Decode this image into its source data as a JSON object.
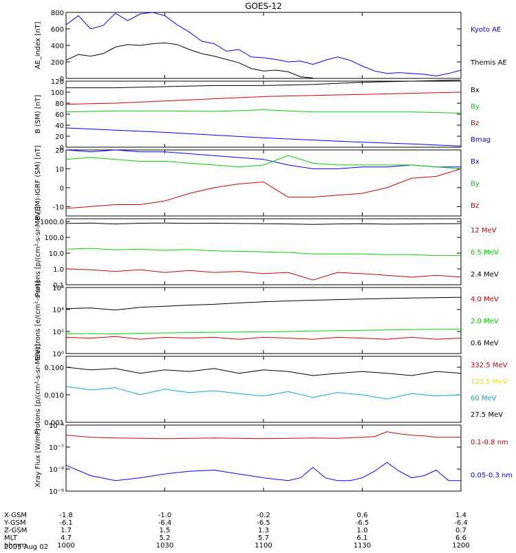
{
  "title": "GOES-12",
  "colors": {
    "black": "#000000",
    "blue": "#0000ff",
    "green": "#00d000",
    "red": "#cc0000",
    "yellow": "#ffd700",
    "cyan": "#00a8d8"
  },
  "chart_data": [
    {
      "type": "line",
      "ylabel": "AE_index [nT]",
      "ylim": [
        0,
        800
      ],
      "yscale": "linear",
      "yticks": [
        0,
        200,
        400,
        600,
        800
      ],
      "yticklabels": [
        "0",
        "200",
        "400",
        "600",
        "800"
      ],
      "series": [
        {
          "name": "Kyoto AE",
          "color": "blue",
          "x": [
            -1.8,
            -1.7,
            -1.6,
            -1.5,
            -1.4,
            -1.3,
            -1.2,
            -1.1,
            -1.0,
            -0.9,
            -0.8,
            -0.7,
            -0.6,
            -0.5,
            -0.4,
            -0.3,
            -0.2,
            -0.1,
            0.0,
            0.1,
            0.2,
            0.3,
            0.4,
            0.5,
            0.6,
            0.7,
            0.8,
            0.9,
            1.0,
            1.1,
            1.2,
            1.3,
            1.4
          ],
          "y": [
            650,
            760,
            600,
            640,
            790,
            700,
            780,
            800,
            760,
            650,
            560,
            450,
            420,
            330,
            350,
            260,
            250,
            230,
            200,
            210,
            170,
            220,
            260,
            220,
            150,
            90,
            60,
            70,
            60,
            50,
            30,
            60,
            100
          ]
        },
        {
          "name": "Themis AE",
          "color": "black",
          "x": [
            -1.8,
            -1.7,
            -1.6,
            -1.5,
            -1.4,
            -1.3,
            -1.2,
            -1.1,
            -1.0,
            -0.9,
            -0.8,
            -0.7,
            -0.6,
            -0.5,
            -0.4,
            -0.3,
            -0.2,
            -0.1,
            0.0,
            0.1,
            0.2
          ],
          "y": [
            220,
            290,
            270,
            300,
            380,
            410,
            400,
            420,
            430,
            410,
            350,
            300,
            270,
            230,
            190,
            120,
            90,
            100,
            80,
            20,
            5
          ]
        }
      ]
    },
    {
      "type": "line",
      "ylabel": "B (SM) [nT]",
      "ylim": [
        0,
        120
      ],
      "yscale": "linear",
      "yticks": [
        0,
        20,
        40,
        60,
        80,
        100,
        120
      ],
      "yticklabels": [
        "0",
        "20",
        "40",
        "60",
        "80",
        "100",
        "120"
      ],
      "series": [
        {
          "name": "Bx",
          "color": "black",
          "x": [
            -1.8,
            -1.4,
            -1.0,
            -0.6,
            -0.2,
            0.2,
            0.6,
            1.0,
            1.4
          ],
          "y": [
            108,
            108,
            110,
            112,
            112,
            114,
            118,
            120,
            122
          ]
        },
        {
          "name": "By",
          "color": "green",
          "x": [
            -1.8,
            -1.4,
            -1.0,
            -0.6,
            -0.2,
            0.2,
            0.6,
            1.0,
            1.4
          ],
          "y": [
            64,
            66,
            66,
            65,
            68,
            64,
            64,
            64,
            62
          ]
        },
        {
          "name": "Bz",
          "color": "red",
          "x": [
            -1.8,
            -1.4,
            -1.0,
            -0.6,
            -0.2,
            0.2,
            0.6,
            1.0,
            1.4
          ],
          "y": [
            78,
            80,
            84,
            88,
            92,
            94,
            96,
            98,
            100
          ]
        },
        {
          "name": "Bmag",
          "color": "blue",
          "x": [
            -1.8,
            -1.4,
            -1.0,
            -0.6,
            -0.2,
            0.2,
            0.6,
            1.0,
            1.4
          ],
          "y": [
            35,
            31,
            27,
            22,
            17,
            13,
            9,
            6,
            2
          ]
        }
      ]
    },
    {
      "type": "line",
      "ylabel": "B (SM)-IGRF (SM) [nT]",
      "ylim": [
        -15,
        20
      ],
      "yscale": "linear",
      "yticks": [
        -10,
        0,
        10,
        20
      ],
      "yticklabels": [
        "-10",
        "0",
        "10",
        "20"
      ],
      "series": [
        {
          "name": "Bx",
          "color": "blue",
          "x": [
            -1.8,
            -1.6,
            -1.4,
            -1.2,
            -1.0,
            -0.8,
            -0.6,
            -0.4,
            -0.2,
            0.0,
            0.2,
            0.4,
            0.6,
            0.8,
            1.0,
            1.2,
            1.4
          ],
          "y": [
            20,
            19,
            20,
            19,
            19,
            18,
            17,
            16,
            15,
            12,
            10,
            10,
            11,
            11,
            12,
            11,
            11
          ]
        },
        {
          "name": "By",
          "color": "green",
          "x": [
            -1.8,
            -1.6,
            -1.4,
            -1.2,
            -1.0,
            -0.8,
            -0.6,
            -0.4,
            -0.2,
            0.0,
            0.2,
            0.4,
            0.6,
            0.8,
            1.0,
            1.2,
            1.4
          ],
          "y": [
            15,
            16,
            15,
            14,
            14,
            13,
            12,
            11,
            12,
            17,
            13,
            12,
            12,
            12,
            12,
            11,
            10
          ]
        },
        {
          "name": "Bz",
          "color": "red",
          "x": [
            -1.8,
            -1.6,
            -1.4,
            -1.2,
            -1.0,
            -0.8,
            -0.6,
            -0.4,
            -0.2,
            0.0,
            0.2,
            0.4,
            0.6,
            0.8,
            1.0,
            1.2,
            1.4
          ],
          "y": [
            -11,
            -10,
            -9,
            -9,
            -7,
            -3,
            0,
            2,
            3,
            -5,
            -5,
            -4,
            -3,
            0,
            5,
            6,
            10
          ]
        }
      ]
    },
    {
      "type": "line",
      "ylabel": "Protons [p/(cm²-s-sr-MeV)]",
      "ylim": [
        0.1,
        1500
      ],
      "yscale": "log",
      "yticks": [
        0.1,
        1,
        10,
        100,
        1000
      ],
      "yticklabels": [
        "0.1",
        "1.0",
        "10.0",
        "100.0",
        "1000.0"
      ],
      "series": [
        {
          "name": "12 MeV",
          "color": "red",
          "x": [
            -1.8,
            -1.6,
            -1.4,
            -1.2,
            -1.0,
            -0.8,
            -0.6,
            -0.4,
            -0.2,
            0.0,
            0.2,
            0.4,
            0.6,
            0.8,
            1.0,
            1.2,
            1.4
          ],
          "y": [
            1.0,
            0.9,
            0.7,
            0.9,
            0.6,
            0.8,
            0.6,
            0.7,
            0.5,
            0.6,
            0.2,
            0.6,
            0.5,
            0.4,
            0.3,
            0.4,
            0.3
          ]
        },
        {
          "name": "6.5 MeV",
          "color": "green",
          "x": [
            -1.8,
            -1.6,
            -1.4,
            -1.2,
            -1.0,
            -0.8,
            -0.6,
            -0.4,
            -0.2,
            0.0,
            0.2,
            0.4,
            0.6,
            0.8,
            1.0,
            1.2,
            1.4
          ],
          "y": [
            18,
            20,
            16,
            18,
            15,
            17,
            14,
            13,
            12,
            11,
            9,
            9,
            9,
            8,
            8,
            7,
            7
          ]
        },
        {
          "name": "2.4 MeV",
          "color": "black",
          "x": [
            -1.8,
            -1.6,
            -1.4,
            -1.2,
            -1.0,
            -0.8,
            -0.6,
            -0.4,
            -0.2,
            0.0,
            0.2,
            0.4,
            0.6,
            0.8,
            1.0,
            1.2,
            1.4
          ],
          "y": [
            750,
            800,
            700,
            780,
            800,
            760,
            780,
            750,
            720,
            700,
            650,
            700,
            720,
            680,
            700,
            720,
            740
          ]
        }
      ]
    },
    {
      "type": "line",
      "ylabel": "Electrons [e/(cm²-s-sr)]",
      "ylim": [
        1,
        1000000
      ],
      "yscale": "log",
      "yticks": [
        1,
        100,
        10000,
        1000000
      ],
      "yticklabels": [
        "10⁰",
        "10²",
        "10⁴",
        "10⁶"
      ],
      "series": [
        {
          "name": "4.0 MeV",
          "color": "red",
          "x": [
            -1.8,
            -1.6,
            -1.4,
            -1.2,
            -1.0,
            -0.8,
            -0.6,
            -0.4,
            -0.2,
            0.0,
            0.2,
            0.4,
            0.6,
            0.8,
            1.0,
            1.2,
            1.4
          ],
          "y": [
            30,
            25,
            35,
            20,
            30,
            25,
            30,
            20,
            30,
            25,
            20,
            30,
            25,
            20,
            30,
            20,
            25
          ]
        },
        {
          "name": "2.0 MeV",
          "color": "green",
          "x": [
            -1.8,
            -1.6,
            -1.4,
            -1.2,
            -1.0,
            -0.8,
            -0.6,
            -0.4,
            -0.2,
            0.0,
            0.2,
            0.4,
            0.6,
            0.8,
            1.0,
            1.2,
            1.4
          ],
          "y": [
            60,
            65,
            60,
            70,
            75,
            80,
            85,
            90,
            95,
            100,
            110,
            120,
            130,
            140,
            150,
            160,
            160
          ]
        },
        {
          "name": "0.6 MeV",
          "color": "black",
          "x": [
            -1.8,
            -1.6,
            -1.4,
            -1.2,
            -1.0,
            -0.8,
            -0.6,
            -0.4,
            -0.2,
            0.0,
            0.2,
            0.4,
            0.6,
            0.8,
            1.0,
            1.2,
            1.4
          ],
          "y": [
            12000,
            14000,
            9000,
            16000,
            20000,
            25000,
            30000,
            40000,
            50000,
            60000,
            70000,
            80000,
            90000,
            100000,
            110000,
            120000,
            130000
          ]
        }
      ]
    },
    {
      "type": "line",
      "ylabel": "Protons [p/(cm²-s-sr-MeV)]",
      "ylim": [
        0.001,
        0.25
      ],
      "yscale": "log",
      "yticks": [
        0.001,
        0.01,
        0.1
      ],
      "yticklabels": [
        "0.001",
        "0.010",
        "0.100"
      ],
      "series": [
        {
          "name": "332.5 MeV",
          "color": "red",
          "x": [],
          "y": []
        },
        {
          "name": "122.5 MeV",
          "color": "yellow",
          "x": [],
          "y": []
        },
        {
          "name": "60 MeV",
          "color": "cyan",
          "x": [
            -1.8,
            -1.6,
            -1.4,
            -1.2,
            -1.0,
            -0.8,
            -0.6,
            -0.4,
            -0.2,
            0.0,
            0.2,
            0.4,
            0.6,
            0.8,
            1.0,
            1.2,
            1.4
          ],
          "y": [
            0.02,
            0.015,
            0.018,
            0.01,
            0.016,
            0.012,
            0.014,
            0.011,
            0.009,
            0.013,
            0.008,
            0.012,
            0.01,
            0.007,
            0.011,
            0.009,
            0.01
          ]
        },
        {
          "name": "27.5 MeV",
          "color": "black",
          "x": [
            -1.8,
            -1.6,
            -1.4,
            -1.2,
            -1.0,
            -0.8,
            -0.6,
            -0.4,
            -0.2,
            0.0,
            0.2,
            0.4,
            0.6,
            0.8,
            1.0,
            1.2,
            1.4
          ],
          "y": [
            0.1,
            0.08,
            0.09,
            0.06,
            0.08,
            0.07,
            0.09,
            0.06,
            0.08,
            0.07,
            0.05,
            0.06,
            0.07,
            0.06,
            0.05,
            0.07,
            0.06
          ]
        }
      ]
    },
    {
      "type": "line",
      "ylabel": "Xray Flux [W/m²]",
      "ylim": [
        1e-09,
        1e-06
      ],
      "yscale": "log",
      "yticks": [
        1e-09,
        1e-08,
        1e-07,
        1e-06
      ],
      "yticklabels": [
        "10⁻⁹",
        "10⁻⁸",
        "10⁻⁷",
        "10⁻⁶"
      ],
      "series": [
        {
          "name": "0.1-0.8 nm",
          "color": "red",
          "x": [
            -1.8,
            -1.6,
            -1.4,
            -1.2,
            -1.0,
            -0.8,
            -0.6,
            -0.4,
            -0.2,
            0.0,
            0.2,
            0.4,
            0.6,
            0.7,
            0.8,
            0.9,
            1.0,
            1.1,
            1.2,
            1.3,
            1.4
          ],
          "y": [
            3.5e-07,
            2.8e-07,
            2.6e-07,
            2.5e-07,
            2.4e-07,
            2.5e-07,
            2.6e-07,
            2.5e-07,
            2.4e-07,
            2.5e-07,
            2.6e-07,
            2.5e-07,
            2.8e-07,
            3e-07,
            5e-07,
            4e-07,
            3.5e-07,
            3.2e-07,
            2.8e-07,
            2.8e-07,
            2.8e-07
          ]
        },
        {
          "name": "0.05-0.3 nm",
          "color": "blue",
          "x": [
            -1.8,
            -1.6,
            -1.4,
            -1.2,
            -1.0,
            -0.8,
            -0.6,
            -0.4,
            -0.2,
            0.0,
            0.1,
            0.2,
            0.3,
            0.4,
            0.5,
            0.6,
            0.7,
            0.8,
            0.9,
            1.0,
            1.1,
            1.2,
            1.3,
            1.4
          ],
          "y": [
            1.5e-08,
            5e-09,
            3e-09,
            4e-09,
            6e-09,
            8e-09,
            9e-09,
            6e-09,
            4e-09,
            3e-09,
            4e-09,
            1.2e-08,
            4e-09,
            3e-09,
            3e-09,
            4e-09,
            8e-09,
            2e-08,
            8e-09,
            4e-09,
            5e-09,
            9e-09,
            3e-09,
            3e-09
          ]
        }
      ]
    }
  ],
  "xaxis": {
    "xlim": [
      -1.8,
      1.4
    ],
    "row_labels": [
      "X-GSM",
      "Y-GSM",
      "Z-GSM",
      "MLT",
      "hhmm",
      "2005 Aug 02"
    ],
    "ticks": [
      {
        "x": -1.8,
        "labels": [
          "-1.8",
          "-6.1",
          "1.7",
          "4.7",
          "1000"
        ]
      },
      {
        "x": -1.0,
        "labels": [
          "-1.0",
          "-6.4",
          "1.5",
          "5.2",
          "1030"
        ]
      },
      {
        "x": -0.2,
        "labels": [
          "-0.2",
          "-6.5",
          "1.3",
          "5.7",
          "1100"
        ]
      },
      {
        "x": 0.6,
        "labels": [
          "0.6",
          "-6.5",
          "1.0",
          "6.1",
          "1130"
        ]
      },
      {
        "x": 1.4,
        "labels": [
          "1.4",
          "-6.4",
          "0.7",
          "6.6",
          "1200"
        ]
      }
    ]
  }
}
